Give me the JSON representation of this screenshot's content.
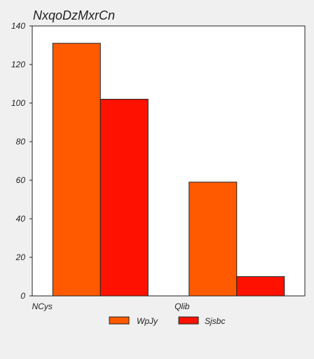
{
  "chart_data": {
    "type": "bar",
    "title": "NxqoDzMxrCn",
    "xlabel": "",
    "ylabel": "",
    "categories": [
      "NCys",
      "Qlib"
    ],
    "series": [
      {
        "name": "WpJy",
        "values": [
          131,
          59
        ],
        "color": "#ff5a00"
      },
      {
        "name": "Sjsbc",
        "values": [
          102,
          10
        ],
        "color": "#ff1100"
      }
    ],
    "ylim": [
      0,
      140
    ],
    "yticks": [
      "0",
      "20",
      "40",
      "60",
      "80",
      "100",
      "120",
      "140"
    ],
    "grid": false,
    "legend_position": "bottom-center"
  }
}
